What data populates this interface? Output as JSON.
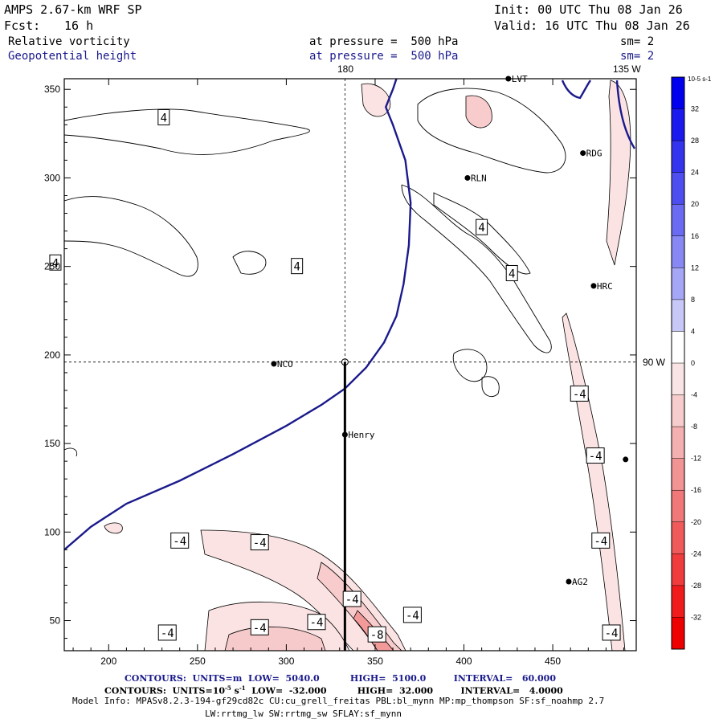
{
  "header": {
    "model": "AMPS 2.67-km WRF SP",
    "init": "Init: 00 UTC Thu 08 Jan 26",
    "fcst_label": "Fcst:",
    "fcst_value": "16 h",
    "valid": "Valid: 16 UTC Thu 08 Jan 26",
    "field1": "Relative vorticity",
    "pressure1": "at pressure =  500 hPa",
    "sm1": "sm= 2",
    "field2": "Geopotential height",
    "pressure2": "at pressure =  500 hPa",
    "sm2": "sm= 2"
  },
  "map_labels": {
    "lon_top_180": "180",
    "lon_top_135w": "135 W",
    "lon_right_90w": "90 W"
  },
  "stations": [
    {
      "name": "LVT",
      "x": 425,
      "y": 356
    },
    {
      "name": "RDG",
      "x": 467,
      "y": 314
    },
    {
      "name": "RLN",
      "x": 402,
      "y": 300
    },
    {
      "name": "HRC",
      "x": 473,
      "y": 239
    },
    {
      "name": "NCO",
      "x": 293,
      "y": 195
    },
    {
      "name": "Henry",
      "x": 333,
      "y": 155
    },
    {
      "name": "AG2",
      "x": 459,
      "y": 72
    },
    {
      "name": "",
      "x": 491,
      "y": 141
    }
  ],
  "contour_labels": [
    {
      "text": "4",
      "x": 231,
      "y": 334
    },
    {
      "text": "4",
      "x": 170,
      "y": 252
    },
    {
      "text": "4",
      "x": 306,
      "y": 250
    },
    {
      "text": "4",
      "x": 410,
      "y": 272
    },
    {
      "text": "4",
      "x": 427,
      "y": 246
    },
    {
      "text": "-4",
      "x": 465,
      "y": 178
    },
    {
      "text": "-4",
      "x": 474,
      "y": 143
    },
    {
      "text": "-4",
      "x": 477,
      "y": 95
    },
    {
      "text": "-4",
      "x": 240,
      "y": 95
    },
    {
      "text": "-4",
      "x": 285,
      "y": 94
    },
    {
      "text": "-4",
      "x": 337,
      "y": 62
    },
    {
      "text": "-4",
      "x": 371,
      "y": 53
    },
    {
      "text": "-4",
      "x": 317,
      "y": 49
    },
    {
      "text": "-4",
      "x": 285,
      "y": 46
    },
    {
      "text": "-4",
      "x": 233,
      "y": 43
    },
    {
      "text": "-8",
      "x": 351,
      "y": 42
    },
    {
      "text": "-4",
      "x": 483,
      "y": 43
    }
  ],
  "colorbar": {
    "unit": "10-5 s-1",
    "labels": [
      "32",
      "28",
      "24",
      "20",
      "16",
      "12",
      "8",
      "4",
      "0",
      "-4",
      "-8",
      "-12",
      "-16",
      "-20",
      "-24",
      "-28",
      "-32"
    ],
    "colors": [
      "#0000ee",
      "#1a1aee",
      "#3434ee",
      "#4e4ef0",
      "#6a6af2",
      "#8888f4",
      "#a6a6f6",
      "#c8c8f8",
      "#ffffff",
      "#f8e4e4",
      "#f6cccc",
      "#f4b0b0",
      "#f29494",
      "#f07878",
      "#f05a5a",
      "#f03c3c",
      "#f01c1c",
      "#ee0000"
    ]
  },
  "footer": {
    "line1": "CONTOURS:  UNITS=m  LOW=  5040.0          HIGH=  5100.0         INTERVAL=   60.000",
    "line2_a": "CONTOURS:  UNITS=10",
    "line2_b": "  LOW=  -32.000          HIGH=  32.000         INTERVAL=   4.0000",
    "line3": "Model Info: MPASv8.2.3-194-gf29cd82c CU:cu_grell_freitas PBL:bl_mynn MP:mp_thompson SF:sf_noahmp 2.7",
    "line4": "LW:rrtmg_lw SW:rrtmg_sw SFLAY:sf_mynn"
  },
  "chart_data": {
    "type": "contour-map",
    "title": "Relative vorticity / Geopotential height at 500 hPa",
    "xlabel": "",
    "ylabel": "",
    "xlim": [
      175,
      497
    ],
    "ylim": [
      33,
      356
    ],
    "xticks": [
      200,
      250,
      300,
      350,
      400,
      450
    ],
    "yticks": [
      50,
      100,
      150,
      200,
      250,
      300,
      350
    ],
    "height_contour_5040_path": [
      [
        175,
        90
      ],
      [
        190,
        103
      ],
      [
        210,
        116
      ],
      [
        240,
        129
      ],
      [
        270,
        144
      ],
      [
        300,
        160
      ],
      [
        320,
        172
      ],
      [
        333,
        181
      ],
      [
        345,
        193
      ],
      [
        355,
        207
      ],
      [
        362,
        222
      ],
      [
        366,
        240
      ],
      [
        369,
        262
      ],
      [
        370,
        286
      ],
      [
        367,
        310
      ],
      [
        360,
        330
      ],
      [
        356,
        340
      ],
      [
        360,
        350
      ],
      [
        362,
        356
      ]
    ],
    "cross_section_line": {
      "x": [
        333,
        333
      ],
      "y": [
        33,
        196
      ]
    },
    "ref_lines": {
      "x": 333,
      "y": 196
    }
  }
}
